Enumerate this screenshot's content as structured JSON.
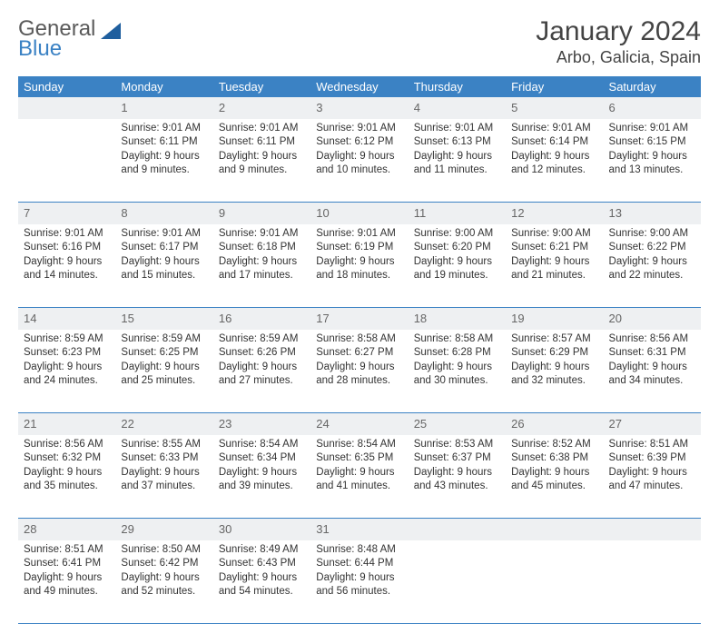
{
  "logo": {
    "text1": "General",
    "text2": "Blue"
  },
  "title": "January 2024",
  "location": "Arbo, Galicia, Spain",
  "colors": {
    "header_bg": "#3b82c4",
    "header_fg": "#ffffff",
    "daynum_bg": "#eef0f2",
    "border": "#3b82c4"
  },
  "weekdays": [
    "Sunday",
    "Monday",
    "Tuesday",
    "Wednesday",
    "Thursday",
    "Friday",
    "Saturday"
  ],
  "cells": [
    [
      {
        "n": "",
        "l": [
          "",
          "",
          "",
          ""
        ]
      },
      {
        "n": "1",
        "l": [
          "Sunrise: 9:01 AM",
          "Sunset: 6:11 PM",
          "Daylight: 9 hours",
          "and 9 minutes."
        ]
      },
      {
        "n": "2",
        "l": [
          "Sunrise: 9:01 AM",
          "Sunset: 6:11 PM",
          "Daylight: 9 hours",
          "and 9 minutes."
        ]
      },
      {
        "n": "3",
        "l": [
          "Sunrise: 9:01 AM",
          "Sunset: 6:12 PM",
          "Daylight: 9 hours",
          "and 10 minutes."
        ]
      },
      {
        "n": "4",
        "l": [
          "Sunrise: 9:01 AM",
          "Sunset: 6:13 PM",
          "Daylight: 9 hours",
          "and 11 minutes."
        ]
      },
      {
        "n": "5",
        "l": [
          "Sunrise: 9:01 AM",
          "Sunset: 6:14 PM",
          "Daylight: 9 hours",
          "and 12 minutes."
        ]
      },
      {
        "n": "6",
        "l": [
          "Sunrise: 9:01 AM",
          "Sunset: 6:15 PM",
          "Daylight: 9 hours",
          "and 13 minutes."
        ]
      }
    ],
    [
      {
        "n": "7",
        "l": [
          "Sunrise: 9:01 AM",
          "Sunset: 6:16 PM",
          "Daylight: 9 hours",
          "and 14 minutes."
        ]
      },
      {
        "n": "8",
        "l": [
          "Sunrise: 9:01 AM",
          "Sunset: 6:17 PM",
          "Daylight: 9 hours",
          "and 15 minutes."
        ]
      },
      {
        "n": "9",
        "l": [
          "Sunrise: 9:01 AM",
          "Sunset: 6:18 PM",
          "Daylight: 9 hours",
          "and 17 minutes."
        ]
      },
      {
        "n": "10",
        "l": [
          "Sunrise: 9:01 AM",
          "Sunset: 6:19 PM",
          "Daylight: 9 hours",
          "and 18 minutes."
        ]
      },
      {
        "n": "11",
        "l": [
          "Sunrise: 9:00 AM",
          "Sunset: 6:20 PM",
          "Daylight: 9 hours",
          "and 19 minutes."
        ]
      },
      {
        "n": "12",
        "l": [
          "Sunrise: 9:00 AM",
          "Sunset: 6:21 PM",
          "Daylight: 9 hours",
          "and 21 minutes."
        ]
      },
      {
        "n": "13",
        "l": [
          "Sunrise: 9:00 AM",
          "Sunset: 6:22 PM",
          "Daylight: 9 hours",
          "and 22 minutes."
        ]
      }
    ],
    [
      {
        "n": "14",
        "l": [
          "Sunrise: 8:59 AM",
          "Sunset: 6:23 PM",
          "Daylight: 9 hours",
          "and 24 minutes."
        ]
      },
      {
        "n": "15",
        "l": [
          "Sunrise: 8:59 AM",
          "Sunset: 6:25 PM",
          "Daylight: 9 hours",
          "and 25 minutes."
        ]
      },
      {
        "n": "16",
        "l": [
          "Sunrise: 8:59 AM",
          "Sunset: 6:26 PM",
          "Daylight: 9 hours",
          "and 27 minutes."
        ]
      },
      {
        "n": "17",
        "l": [
          "Sunrise: 8:58 AM",
          "Sunset: 6:27 PM",
          "Daylight: 9 hours",
          "and 28 minutes."
        ]
      },
      {
        "n": "18",
        "l": [
          "Sunrise: 8:58 AM",
          "Sunset: 6:28 PM",
          "Daylight: 9 hours",
          "and 30 minutes."
        ]
      },
      {
        "n": "19",
        "l": [
          "Sunrise: 8:57 AM",
          "Sunset: 6:29 PM",
          "Daylight: 9 hours",
          "and 32 minutes."
        ]
      },
      {
        "n": "20",
        "l": [
          "Sunrise: 8:56 AM",
          "Sunset: 6:31 PM",
          "Daylight: 9 hours",
          "and 34 minutes."
        ]
      }
    ],
    [
      {
        "n": "21",
        "l": [
          "Sunrise: 8:56 AM",
          "Sunset: 6:32 PM",
          "Daylight: 9 hours",
          "and 35 minutes."
        ]
      },
      {
        "n": "22",
        "l": [
          "Sunrise: 8:55 AM",
          "Sunset: 6:33 PM",
          "Daylight: 9 hours",
          "and 37 minutes."
        ]
      },
      {
        "n": "23",
        "l": [
          "Sunrise: 8:54 AM",
          "Sunset: 6:34 PM",
          "Daylight: 9 hours",
          "and 39 minutes."
        ]
      },
      {
        "n": "24",
        "l": [
          "Sunrise: 8:54 AM",
          "Sunset: 6:35 PM",
          "Daylight: 9 hours",
          "and 41 minutes."
        ]
      },
      {
        "n": "25",
        "l": [
          "Sunrise: 8:53 AM",
          "Sunset: 6:37 PM",
          "Daylight: 9 hours",
          "and 43 minutes."
        ]
      },
      {
        "n": "26",
        "l": [
          "Sunrise: 8:52 AM",
          "Sunset: 6:38 PM",
          "Daylight: 9 hours",
          "and 45 minutes."
        ]
      },
      {
        "n": "27",
        "l": [
          "Sunrise: 8:51 AM",
          "Sunset: 6:39 PM",
          "Daylight: 9 hours",
          "and 47 minutes."
        ]
      }
    ],
    [
      {
        "n": "28",
        "l": [
          "Sunrise: 8:51 AM",
          "Sunset: 6:41 PM",
          "Daylight: 9 hours",
          "and 49 minutes."
        ]
      },
      {
        "n": "29",
        "l": [
          "Sunrise: 8:50 AM",
          "Sunset: 6:42 PM",
          "Daylight: 9 hours",
          "and 52 minutes."
        ]
      },
      {
        "n": "30",
        "l": [
          "Sunrise: 8:49 AM",
          "Sunset: 6:43 PM",
          "Daylight: 9 hours",
          "and 54 minutes."
        ]
      },
      {
        "n": "31",
        "l": [
          "Sunrise: 8:48 AM",
          "Sunset: 6:44 PM",
          "Daylight: 9 hours",
          "and 56 minutes."
        ]
      },
      {
        "n": "",
        "l": [
          "",
          "",
          "",
          ""
        ]
      },
      {
        "n": "",
        "l": [
          "",
          "",
          "",
          ""
        ]
      },
      {
        "n": "",
        "l": [
          "",
          "",
          "",
          ""
        ]
      }
    ]
  ]
}
